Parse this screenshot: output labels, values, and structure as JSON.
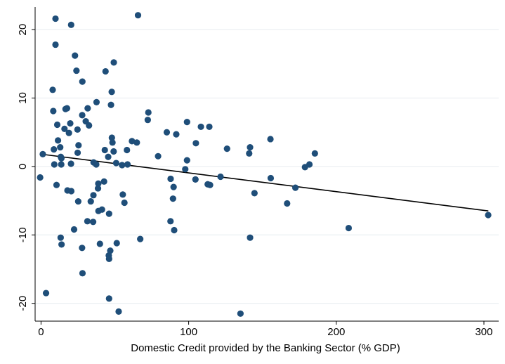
{
  "chart_data": {
    "type": "scatter",
    "title": "",
    "xlabel": "Domestic Credit provided by the Banking Sector (% GDP)",
    "ylabel": "",
    "xlim": [
      -4,
      310
    ],
    "ylim": [
      -22.6,
      23.3
    ],
    "x_ticks": [
      0,
      100,
      200,
      300
    ],
    "y_ticks": [
      -20,
      -10,
      0,
      10,
      20
    ],
    "x_tick_labels": [
      "0",
      "100",
      "200",
      "300"
    ],
    "y_tick_labels": [
      "-20",
      "-10",
      "0",
      "10",
      "20"
    ],
    "grid": "horizontal",
    "legend": "none",
    "colors": {
      "points": "#1f4e79",
      "fit_line": "#000000",
      "grid": "#e6ebef",
      "axis": "#000000"
    },
    "fit_line": {
      "x": [
        0,
        303
      ],
      "y": [
        1.8,
        -6.5
      ]
    },
    "series": [
      {
        "points": [
          [
            9.8,
            21.6
          ],
          [
            20.4,
            20.7
          ],
          [
            65.7,
            22.1
          ],
          [
            9.8,
            17.8
          ],
          [
            23,
            16.2
          ],
          [
            49.3,
            15.2
          ],
          [
            24,
            14
          ],
          [
            43.7,
            13.9
          ],
          [
            28,
            12.4
          ],
          [
            7.9,
            11.2
          ],
          [
            47.9,
            10.9
          ],
          [
            37.6,
            9.4
          ],
          [
            47.4,
            9
          ],
          [
            17.6,
            8.5
          ],
          [
            16.6,
            8.4
          ],
          [
            31.6,
            8.5
          ],
          [
            8.3,
            8.1
          ],
          [
            27.9,
            7.5
          ],
          [
            72.7,
            7.9
          ],
          [
            72.3,
            6.8
          ],
          [
            30.3,
            6.6
          ],
          [
            98.9,
            6.5
          ],
          [
            32.5,
            6
          ],
          [
            11,
            6.1
          ],
          [
            19.8,
            6.3
          ],
          [
            108.3,
            5.8
          ],
          [
            114,
            5.8
          ],
          [
            15.9,
            5.5
          ],
          [
            18.9,
            4.9
          ],
          [
            24.7,
            5.4
          ],
          [
            85.2,
            5
          ],
          [
            91.6,
            4.7
          ],
          [
            155.4,
            4
          ],
          [
            11.5,
            3.8
          ],
          [
            48,
            4.2
          ],
          [
            61.6,
            3.7
          ],
          [
            48.4,
            3.5
          ],
          [
            64.9,
            3.5
          ],
          [
            25.4,
            3.1
          ],
          [
            104.9,
            3.4
          ],
          [
            13,
            2.8
          ],
          [
            8.7,
            2.5
          ],
          [
            126,
            2.6
          ],
          [
            141.6,
            2.8
          ],
          [
            49.2,
            2.2
          ],
          [
            43.2,
            2.4
          ],
          [
            58.2,
            2.4
          ],
          [
            24.8,
            2
          ],
          [
            185.5,
            1.9
          ],
          [
            141,
            1.9
          ],
          [
            1.2,
            1.8
          ],
          [
            79.3,
            1.5
          ],
          [
            45.5,
            1.4
          ],
          [
            13.4,
            1.4
          ],
          [
            13.8,
            1.2
          ],
          [
            98.9,
            0.9
          ],
          [
            35.6,
            0.6
          ],
          [
            50.9,
            0.5
          ],
          [
            9,
            0.3
          ],
          [
            13.7,
            0.3
          ],
          [
            20.3,
            0.4
          ],
          [
            37.4,
            0.3
          ],
          [
            54.9,
            0.2
          ],
          [
            58.6,
            0.3
          ],
          [
            181.8,
            0.3
          ],
          [
            178.8,
            -0.1
          ],
          [
            97.7,
            -0.4
          ],
          [
            121.6,
            -1.5
          ],
          [
            -0.6,
            -1.6
          ],
          [
            104.6,
            -1.9
          ],
          [
            87.8,
            -1.8
          ],
          [
            155.6,
            -1.7
          ],
          [
            42.7,
            -2.2
          ],
          [
            38.8,
            -2.5
          ],
          [
            112.9,
            -2.6
          ],
          [
            114.5,
            -2.7
          ],
          [
            10.5,
            -2.7
          ],
          [
            89.8,
            -3
          ],
          [
            172.3,
            -3.1
          ],
          [
            38.6,
            -3.2
          ],
          [
            17.9,
            -3.5
          ],
          [
            20.5,
            -3.6
          ],
          [
            144.6,
            -3.9
          ],
          [
            55.4,
            -4.1
          ],
          [
            35.5,
            -4.2
          ],
          [
            89.4,
            -4.7
          ],
          [
            25.2,
            -5.1
          ],
          [
            33.7,
            -5.1
          ],
          [
            56.5,
            -5.3
          ],
          [
            166.7,
            -5.4
          ],
          [
            41.3,
            -6.3
          ],
          [
            38.9,
            -6.5
          ],
          [
            46.1,
            -6.9
          ],
          [
            302.9,
            -7.1
          ],
          [
            31.4,
            -8
          ],
          [
            35.3,
            -8.1
          ],
          [
            87.7,
            -8
          ],
          [
            208.4,
            -9
          ],
          [
            22.4,
            -9.2
          ],
          [
            90.2,
            -9.3
          ],
          [
            13.3,
            -10.4
          ],
          [
            141.6,
            -10.4
          ],
          [
            67.2,
            -10.6
          ],
          [
            39.9,
            -11.3
          ],
          [
            51.3,
            -11.2
          ],
          [
            13.9,
            -11.4
          ],
          [
            27.8,
            -11.9
          ],
          [
            46.9,
            -12.3
          ],
          [
            45.9,
            -13
          ],
          [
            46.1,
            -13.5
          ],
          [
            28.1,
            -15.6
          ],
          [
            3.4,
            -18.5
          ],
          [
            46.1,
            -19.3
          ],
          [
            52.6,
            -21.2
          ],
          [
            135.1,
            -21.5
          ]
        ]
      }
    ]
  }
}
